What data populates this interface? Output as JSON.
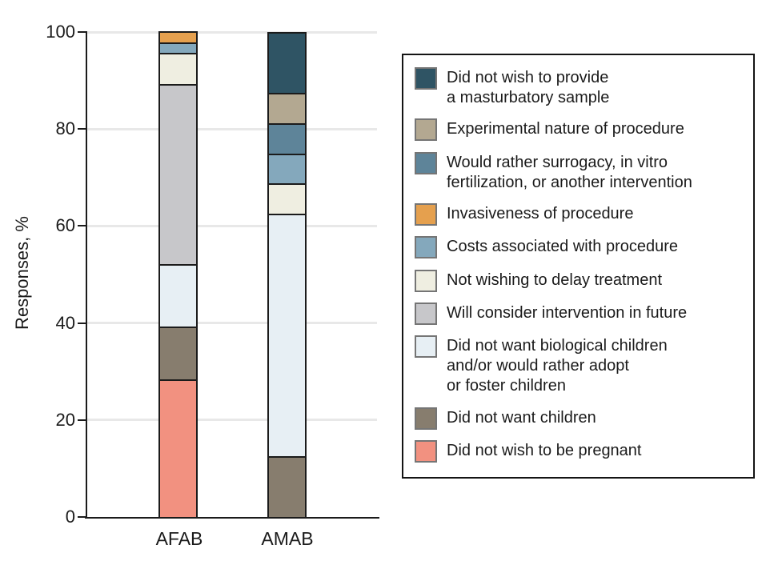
{
  "figure": {
    "ylabel": "Responses, %"
  },
  "chart_data": {
    "type": "bar",
    "subtype": "stacked-percentage",
    "title": "",
    "xlabel": "",
    "ylabel": "Responses, %",
    "ylim": [
      0,
      100
    ],
    "yticks": [
      0,
      20,
      40,
      60,
      80,
      100
    ],
    "grid": "horizontal",
    "legend_position": "right",
    "categories": [
      "AFAB",
      "AMAB"
    ],
    "series": [
      {
        "name": "Did not wish to be pregnant",
        "color": "#f29180",
        "values": [
          28.3,
          0
        ]
      },
      {
        "name": "Did not want children",
        "color": "#877d6e",
        "values": [
          10.9,
          12.5
        ]
      },
      {
        "name": "Did not want biological children and/or would rather adopt or foster children",
        "color": "#e7eff4",
        "values": [
          13.0,
          50.0
        ]
      },
      {
        "name": "Will consider intervention in future",
        "color": "#c7c7ca",
        "values": [
          37.0,
          0
        ]
      },
      {
        "name": "Not wishing to delay treatment",
        "color": "#efeee1",
        "values": [
          6.5,
          6.25
        ]
      },
      {
        "name": "Costs associated with procedure",
        "color": "#84a8bc",
        "values": [
          2.2,
          6.25
        ]
      },
      {
        "name": "Invasiveness of procedure",
        "color": "#e5a04e",
        "values": [
          2.2,
          0
        ]
      },
      {
        "name": "Would rather surrogacy, in vitro fertilization, or another intervention",
        "color": "#5e8499",
        "values": [
          0,
          6.25
        ]
      },
      {
        "name": "Experimental nature of procedure",
        "color": "#b3a891",
        "values": [
          0,
          6.25
        ]
      },
      {
        "name": "Did not wish to provide a masturbatory sample",
        "color": "#2f5464",
        "values": [
          0,
          12.5
        ]
      }
    ]
  },
  "legend": {
    "items": [
      {
        "label": "Did not wish to provide\na masturbatory sample",
        "color": "#2f5464"
      },
      {
        "label": "Experimental nature of procedure",
        "color": "#b3a891"
      },
      {
        "label": "Would rather surrogacy, in vitro\nfertilization, or another intervention",
        "color": "#5e8499"
      },
      {
        "label": "Invasiveness of procedure",
        "color": "#e5a04e"
      },
      {
        "label": "Costs associated with procedure",
        "color": "#84a8bc"
      },
      {
        "label": "Not wishing to delay treatment",
        "color": "#efeee1"
      },
      {
        "label": "Will consider intervention in future",
        "color": "#c7c7ca"
      },
      {
        "label": "Did not want biological children\nand/or would rather adopt\nor foster children",
        "color": "#e7eff4"
      },
      {
        "label": "Did not want children",
        "color": "#877d6e"
      },
      {
        "label": "Did not wish to be pregnant",
        "color": "#f29180"
      }
    ]
  }
}
